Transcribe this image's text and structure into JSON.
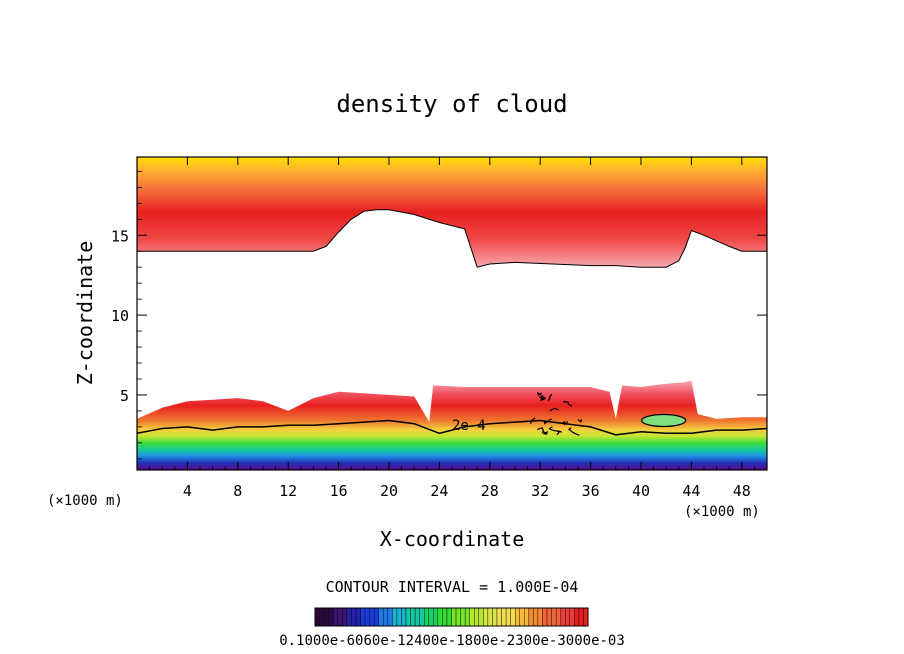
{
  "chart_data": {
    "type": "contour",
    "title": "density of cloud",
    "xlabel": "X-coordinate",
    "ylabel": "Z-coordinate",
    "x_unit_left": "(×1000 m)",
    "x_unit_right": "(×1000 m)",
    "xlim": [
      0,
      50
    ],
    "ylim": [
      0.3,
      19.9
    ],
    "x_ticks": [
      4,
      8,
      12,
      16,
      20,
      24,
      28,
      32,
      36,
      40,
      44,
      48
    ],
    "x_tick_labels": [
      "4",
      "8",
      "12",
      "16",
      "20",
      "24",
      "28",
      "32",
      "36",
      "40",
      "44",
      "48"
    ],
    "y_ticks": [
      5,
      10,
      15
    ],
    "y_tick_labels": [
      "5",
      "10",
      "15"
    ],
    "contour_interval_text": "CONTOUR INTERVAL = 1.000E-04",
    "contour_label": "2e-4",
    "colorbar_labels_text": "0.1000e-6060e-12400e-1800e-2300e-3000e-03",
    "colorbar_colors": [
      "#2a0a3c",
      "#3a1470",
      "#2420a8",
      "#1a3cd8",
      "#1e78e6",
      "#1ab4d2",
      "#12c8a0",
      "#18d264",
      "#32dc32",
      "#78e628",
      "#b4e632",
      "#d7e646",
      "#f0dc50",
      "#f5b93c",
      "#f58c32",
      "#f0643c",
      "#ec3c3c",
      "#e61e1e"
    ],
    "upper_cloud": {
      "top": 19.9,
      "base_x": [
        0,
        8,
        14,
        15,
        16,
        17,
        18,
        19,
        20,
        22,
        24,
        26,
        26.5,
        27,
        28,
        30,
        33,
        36,
        38,
        40,
        42,
        43,
        43.5,
        44,
        45,
        47,
        48,
        50
      ],
      "base_z": [
        14.0,
        14.0,
        14.0,
        14.3,
        15.2,
        16.0,
        16.5,
        16.6,
        16.6,
        16.3,
        15.8,
        15.4,
        14.2,
        13.0,
        13.2,
        13.3,
        13.2,
        13.1,
        13.1,
        13.0,
        13.0,
        13.4,
        14.2,
        15.3,
        15.0,
        14.3,
        14.0,
        14.0
      ]
    },
    "lower_cloud": {
      "base": 0.3,
      "top_x": [
        0,
        2,
        4,
        6,
        8,
        10,
        12,
        14,
        16,
        18,
        20,
        22,
        23.2,
        23.5,
        26,
        30,
        34,
        36,
        37.5,
        38,
        38.5,
        40,
        42,
        43.5,
        44,
        44.5,
        46,
        48,
        50
      ],
      "top_z": [
        3.5,
        4.2,
        4.6,
        4.7,
        4.8,
        4.6,
        4.0,
        4.8,
        5.2,
        5.1,
        5.0,
        4.9,
        3.3,
        5.6,
        5.5,
        5.5,
        5.5,
        5.5,
        5.2,
        3.5,
        5.6,
        5.5,
        5.7,
        5.8,
        5.9,
        3.8,
        3.5,
        3.6,
        3.6
      ],
      "contour_2e4_x": [
        0,
        2,
        4,
        6,
        8,
        10,
        12,
        14,
        16,
        18,
        20,
        22,
        24,
        26,
        28,
        30,
        32,
        34,
        36,
        38,
        40,
        42,
        44,
        46,
        48,
        50
      ],
      "contour_2e4_z": [
        2.6,
        2.9,
        3.0,
        2.8,
        3.0,
        3.0,
        3.1,
        3.1,
        3.2,
        3.3,
        3.4,
        3.2,
        2.6,
        3.0,
        3.2,
        3.3,
        3.4,
        3.2,
        3.0,
        2.5,
        2.7,
        2.6,
        2.6,
        2.8,
        2.8,
        2.9
      ]
    }
  }
}
